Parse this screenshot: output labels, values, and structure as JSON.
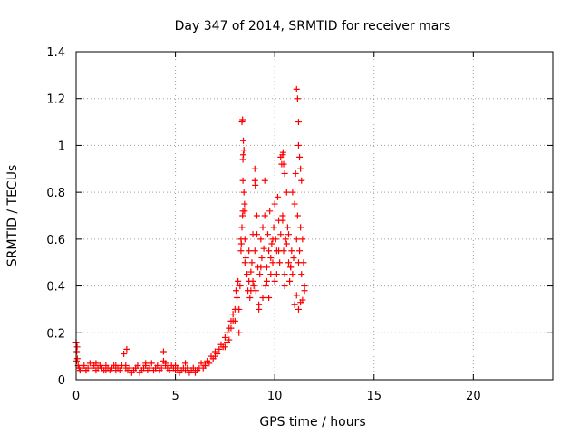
{
  "chart_data": {
    "type": "scatter",
    "title": "Day 347 of 2014, SRMTID for receiver mars",
    "xlabel": "GPS time / hours",
    "ylabel": "SRMTID / TECUs",
    "xlim": [
      0,
      24
    ],
    "ylim": [
      0,
      1.4
    ],
    "xticks": [
      0,
      5,
      10,
      15,
      20
    ],
    "xtick_labels": [
      "0",
      "5",
      "10",
      "15",
      "20"
    ],
    "yticks": [
      0,
      0.2,
      0.4,
      0.6,
      0.8,
      1,
      1.2,
      1.4
    ],
    "ytick_labels": [
      "0",
      "0.2",
      "0.4",
      "0.6",
      "0.8",
      "1",
      "1.2",
      "1.4"
    ],
    "grid": true,
    "marker": "+",
    "marker_color": "#ff0000",
    "series": [
      {
        "name": "SRMTID",
        "x": [
          0.0,
          0.03,
          0.06,
          0.1,
          0.15,
          0.2,
          0.3,
          0.4,
          0.5,
          0.6,
          0.7,
          0.8,
          0.9,
          1.0,
          1.1,
          1.2,
          1.3,
          1.4,
          1.5,
          1.6,
          1.7,
          1.8,
          1.9,
          2.0,
          2.1,
          2.2,
          2.3,
          2.4,
          2.5,
          2.6,
          2.7,
          2.8,
          2.9,
          3.0,
          3.1,
          3.2,
          3.3,
          3.4,
          3.5,
          3.6,
          3.7,
          3.8,
          3.9,
          4.0,
          4.1,
          4.2,
          4.3,
          4.4,
          4.5,
          4.6,
          4.7,
          4.8,
          4.9,
          5.0,
          5.1,
          5.2,
          5.3,
          5.4,
          5.5,
          5.6,
          5.7,
          5.8,
          5.9,
          6.0,
          6.1,
          6.2,
          6.3,
          6.4,
          6.5,
          6.6,
          6.7,
          6.8,
          6.9,
          7.0,
          7.1,
          7.2,
          7.3,
          7.4,
          7.5,
          7.6,
          7.7,
          7.8,
          7.9,
          8.0,
          8.05,
          8.1,
          8.15,
          8.2,
          8.25,
          8.3,
          8.32,
          8.35,
          8.38,
          8.4,
          8.42,
          8.45,
          8.48,
          8.5,
          8.55,
          8.6,
          8.65,
          8.7,
          8.75,
          8.8,
          8.85,
          8.9,
          8.95,
          9.0,
          9.05,
          9.1,
          9.15,
          9.2,
          9.25,
          9.3,
          9.35,
          9.4,
          9.45,
          9.5,
          9.55,
          9.6,
          9.65,
          9.7,
          9.75,
          9.8,
          9.85,
          9.9,
          9.95,
          10.0,
          10.05,
          10.1,
          10.15,
          10.2,
          10.25,
          10.3,
          10.35,
          10.4,
          10.45,
          10.5,
          10.55,
          10.6,
          10.65,
          10.7,
          10.75,
          10.8,
          10.85,
          10.9,
          10.95,
          11.0,
          11.05,
          11.1,
          11.15,
          11.2,
          11.25,
          11.3,
          11.35,
          11.4,
          11.45,
          11.5,
          0.02,
          0.05,
          0.5,
          1.0,
          1.5,
          2.0,
          2.5,
          2.55,
          3.0,
          3.5,
          4.0,
          4.4,
          4.5,
          5.0,
          5.5,
          6.0,
          6.5,
          7.0,
          7.5,
          7.6,
          7.7,
          7.8,
          7.9,
          8.0,
          8.1,
          8.2,
          8.3,
          8.4,
          8.5,
          8.6,
          8.7,
          8.8,
          8.9,
          9.0,
          9.1,
          9.2,
          9.3,
          9.4,
          9.5,
          9.6,
          9.7,
          9.8,
          9.9,
          10.0,
          10.1,
          10.2,
          10.3,
          10.4,
          10.5,
          10.6,
          10.7,
          10.8,
          10.9,
          11.0,
          11.1,
          11.2,
          11.3,
          11.4,
          11.5,
          11.1,
          11.15,
          11.2,
          11.2,
          11.25,
          11.3,
          11.35,
          8.35,
          8.38,
          8.4,
          8.42,
          8.45,
          8.48,
          10.4,
          10.42,
          10.45,
          10.5,
          9.0,
          9.02
        ],
        "y": [
          0.16,
          0.12,
          0.09,
          0.06,
          0.05,
          0.04,
          0.05,
          0.06,
          0.04,
          0.05,
          0.07,
          0.05,
          0.06,
          0.04,
          0.05,
          0.06,
          0.05,
          0.04,
          0.06,
          0.05,
          0.04,
          0.05,
          0.06,
          0.04,
          0.05,
          0.04,
          0.06,
          0.11,
          0.06,
          0.04,
          0.05,
          0.03,
          0.04,
          0.05,
          0.06,
          0.03,
          0.04,
          0.05,
          0.06,
          0.04,
          0.05,
          0.07,
          0.04,
          0.05,
          0.06,
          0.04,
          0.05,
          0.08,
          0.07,
          0.05,
          0.04,
          0.06,
          0.05,
          0.04,
          0.05,
          0.03,
          0.04,
          0.05,
          0.04,
          0.05,
          0.03,
          0.04,
          0.05,
          0.03,
          0.04,
          0.05,
          0.07,
          0.05,
          0.06,
          0.08,
          0.07,
          0.1,
          0.09,
          0.12,
          0.11,
          0.13,
          0.15,
          0.14,
          0.18,
          0.2,
          0.22,
          0.25,
          0.28,
          0.3,
          0.38,
          0.35,
          0.42,
          0.3,
          0.4,
          0.55,
          0.58,
          0.65,
          0.7,
          0.85,
          1.02,
          0.98,
          0.72,
          0.6,
          0.52,
          0.45,
          0.38,
          0.42,
          0.35,
          0.46,
          0.5,
          0.62,
          0.4,
          0.55,
          0.38,
          0.62,
          0.48,
          0.32,
          0.45,
          0.6,
          0.52,
          0.35,
          0.56,
          0.7,
          0.4,
          0.48,
          0.62,
          0.55,
          0.72,
          0.45,
          0.58,
          0.5,
          0.65,
          0.42,
          0.6,
          0.55,
          0.78,
          0.68,
          0.5,
          0.62,
          0.92,
          0.7,
          0.55,
          0.45,
          0.6,
          0.8,
          0.65,
          0.5,
          0.42,
          0.48,
          0.55,
          0.45,
          0.52,
          0.75,
          0.88,
          0.6,
          0.7,
          0.5,
          0.55,
          0.65,
          0.45,
          0.6,
          0.5,
          0.4,
          0.08,
          0.14,
          0.04,
          0.07,
          0.04,
          0.06,
          0.05,
          0.13,
          0.05,
          0.07,
          0.05,
          0.12,
          0.06,
          0.06,
          0.07,
          0.04,
          0.06,
          0.1,
          0.14,
          0.16,
          0.17,
          0.22,
          0.25,
          0.25,
          0.3,
          0.2,
          0.6,
          0.72,
          0.5,
          0.45,
          0.55,
          0.38,
          0.42,
          0.9,
          0.7,
          0.3,
          0.48,
          0.65,
          0.85,
          0.42,
          0.35,
          0.52,
          0.6,
          0.75,
          0.45,
          0.55,
          0.95,
          0.68,
          0.4,
          0.58,
          0.62,
          0.48,
          0.8,
          0.32,
          0.36,
          0.3,
          0.33,
          0.34,
          0.38,
          1.24,
          1.2,
          1.1,
          1.0,
          0.95,
          0.9,
          0.85,
          1.1,
          1.11,
          0.94,
          0.96,
          0.8,
          0.75,
          0.96,
          0.97,
          0.92,
          0.88,
          0.85,
          0.83
        ]
      }
    ]
  }
}
